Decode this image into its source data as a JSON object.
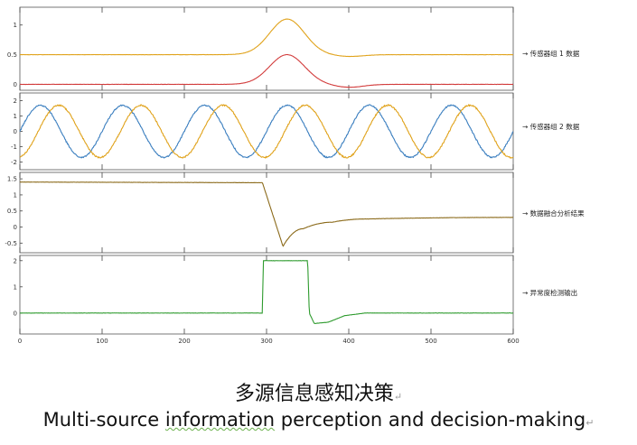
{
  "caption": {
    "chinese": "多源信息感知决策",
    "english_pre": "Multi-source ",
    "english_mark": "information",
    "english_post": " perception and decision-making",
    "paragraph_mark": "↵"
  },
  "chart_data": [
    {
      "type": "line",
      "panel": "sensor1",
      "ylim": [
        -0.1,
        1.3
      ],
      "yticks": [
        "1",
        "0.5",
        "0"
      ],
      "ytick_values": [
        1,
        0.5,
        0
      ],
      "legend": [
        "→ 传感器组 1 数据"
      ],
      "series": [
        {
          "color": "#e0a21a",
          "baseline": 0.5,
          "bump": {
            "center": 325,
            "width": 30,
            "height": 0.6
          },
          "dip": {
            "center": 400,
            "depth": 0.03
          }
        },
        {
          "color": "#d23b3b",
          "baseline": 0.0,
          "bump": {
            "center": 325,
            "width": 30,
            "height": 0.5
          },
          "dip": {
            "center": 400,
            "depth": 0.05
          }
        }
      ]
    },
    {
      "type": "line",
      "panel": "sensor2",
      "ylim": [
        -2.5,
        2.5
      ],
      "yticks": [
        "2",
        "1",
        "0",
        "-1",
        "-2"
      ],
      "ytick_values": [
        2,
        1,
        0,
        -1,
        -2
      ],
      "legend": [
        "→ 传感器组 2 数据"
      ],
      "series": [
        {
          "color": "#3a7ebf",
          "amplitude": 1.7,
          "period": 100,
          "phase": 0
        },
        {
          "color": "#e0a21a",
          "amplitude": 1.7,
          "period": 100,
          "phase": -1.4
        }
      ]
    },
    {
      "type": "line",
      "panel": "fusion",
      "ylim": [
        -0.8,
        1.7
      ],
      "yticks": [
        "1.5",
        "1",
        "0.5",
        "0",
        "-0.5"
      ],
      "ytick_values": [
        1.5,
        1,
        0.5,
        0,
        -0.5
      ],
      "legend": [
        "→ 数据融合分析结果"
      ],
      "series": [
        {
          "color": "#8b6a1a",
          "points": [
            [
              0,
              1.4
            ],
            [
              295,
              1.38
            ],
            [
              320,
              -0.6
            ],
            [
              345,
              -0.05
            ],
            [
              380,
              0.15
            ],
            [
              420,
              0.25
            ],
            [
              600,
              0.3
            ]
          ]
        }
      ]
    },
    {
      "type": "line",
      "panel": "anomaly",
      "ylim": [
        -0.8,
        2.2
      ],
      "yticks": [
        "2",
        "1",
        "0"
      ],
      "ytick_values": [
        2,
        1,
        0
      ],
      "legend": [
        "→ 异常度检测输出"
      ],
      "series": [
        {
          "color": "#2e9b2e",
          "points": [
            [
              0,
              0
            ],
            [
              295,
              0
            ],
            [
              296,
              2
            ],
            [
              350,
              2
            ],
            [
              352,
              0
            ],
            [
              358,
              -0.4
            ],
            [
              375,
              -0.35
            ],
            [
              395,
              -0.1
            ],
            [
              420,
              0
            ],
            [
              600,
              0
            ]
          ]
        }
      ]
    }
  ],
  "x_axis": {
    "xlim": [
      0,
      600
    ],
    "ticks": [
      0,
      100,
      200,
      300,
      400,
      500,
      600
    ],
    "tick_labels": [
      "0",
      "100",
      "200",
      "300",
      "400",
      "500",
      "600"
    ]
  }
}
